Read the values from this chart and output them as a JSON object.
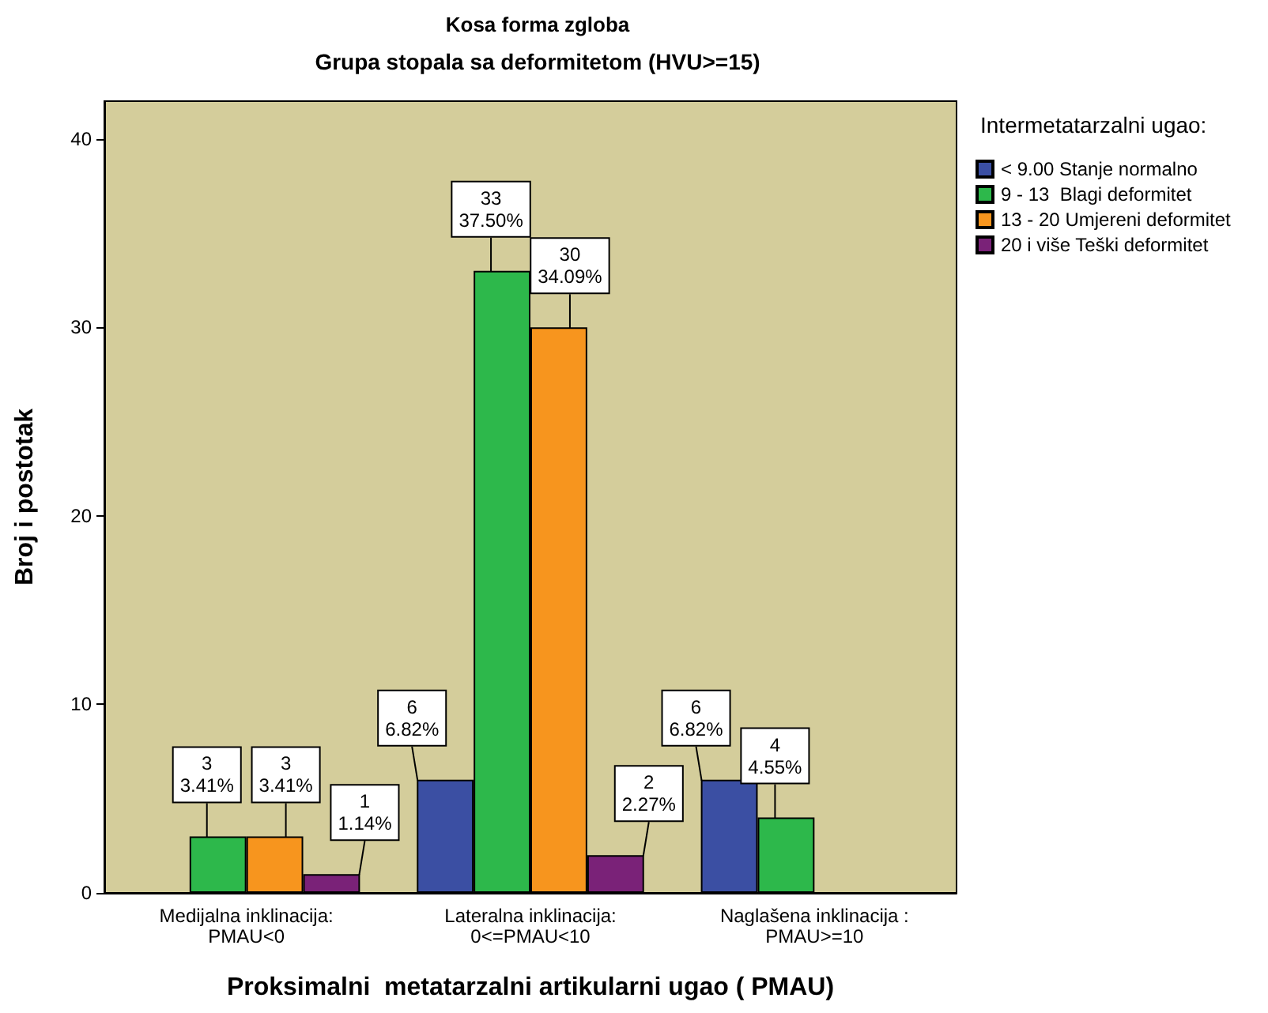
{
  "chart_data": {
    "type": "bar",
    "title": "Kosa forma zgloba",
    "subtitle": "Grupa stopala sa deformitetom (HVU>=15)",
    "xlabel": "Proksimalni  metatarzalni artikularni ugao ( PMAU)",
    "ylabel": "Broj i postotak",
    "legend_title": "Intermetatarzalni ugao:",
    "categories": [
      "Medijalna inklinacija:\nPMAU<0",
      "Lateralna inklinacija:\n0<=PMAU<10",
      "Naglašena inklinacija :\nPMAU>=10"
    ],
    "series": [
      {
        "name": "< 9.00 Stanje normalno",
        "color": "#3b4fa3",
        "values": [
          null,
          6,
          6
        ],
        "value_labels": [
          null,
          "6\n6.82%",
          "6\n6.82%"
        ]
      },
      {
        "name": "9 - 13  Blagi deformitet",
        "color": "#2db84b",
        "values": [
          3,
          33,
          4
        ],
        "value_labels": [
          "3\n3.41%",
          "33\n37.50%",
          "4\n4.55%"
        ]
      },
      {
        "name": "13 - 20 Umjereni deformitet",
        "color": "#f7951e",
        "values": [
          3,
          30,
          null
        ],
        "value_labels": [
          "3\n3.41%",
          "30\n34.09%",
          null
        ]
      },
      {
        "name": "20 i više Teški deformitet",
        "color": "#7a2278",
        "values": [
          1,
          2,
          null
        ],
        "value_labels": [
          "1\n1.14%",
          "2\n2.27%",
          null
        ]
      }
    ],
    "ylim": [
      0,
      42
    ],
    "yticks": [
      0,
      10,
      20,
      30,
      40
    ],
    "grid": false,
    "legend": "right"
  }
}
